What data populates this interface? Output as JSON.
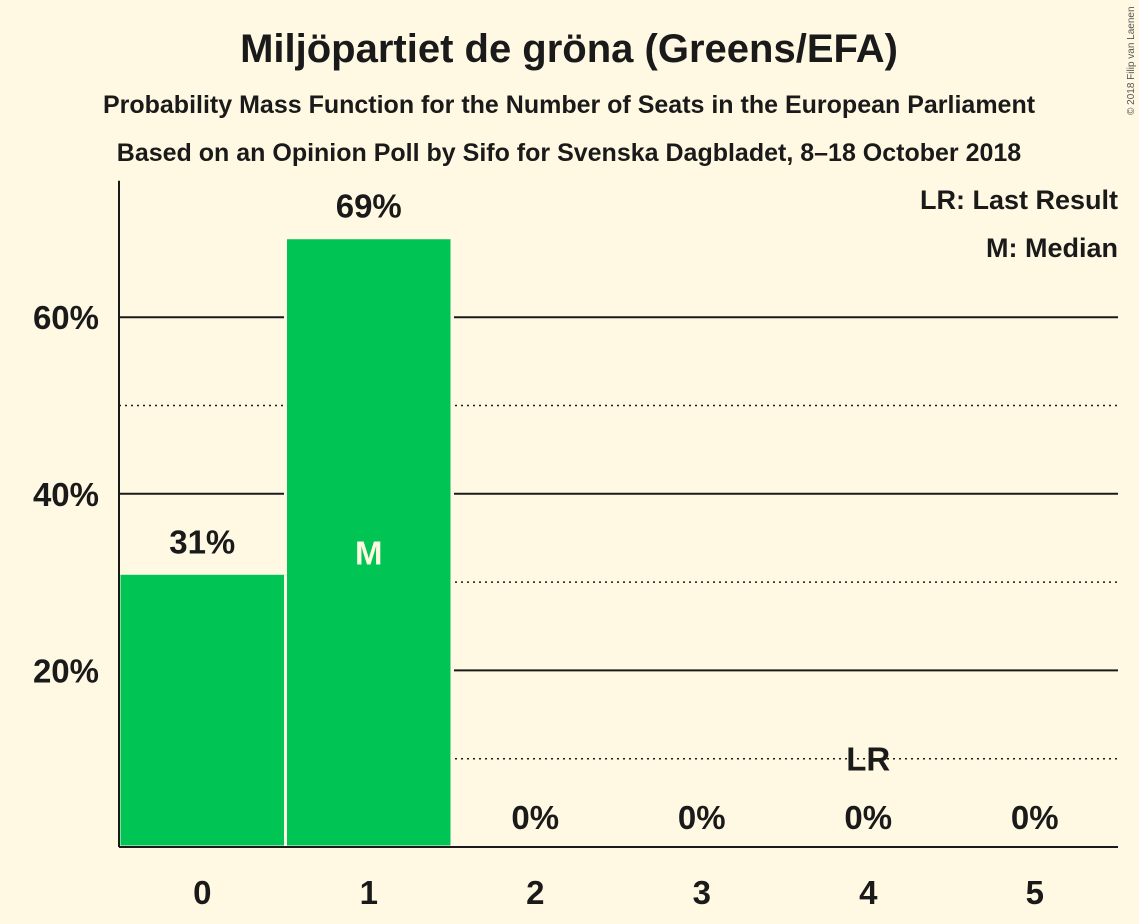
{
  "chart_data": {
    "type": "bar",
    "title": "Miljöpartiet de gröna (Greens/EFA)",
    "subtitles": [
      "Probability Mass Function for the Number of Seats in the European Parliament",
      "Based on an Opinion Poll by Sifo for Svenska Dagbladet, 8–18 October 2018"
    ],
    "categories": [
      "0",
      "1",
      "2",
      "3",
      "4",
      "5"
    ],
    "values": [
      31,
      69,
      0,
      0,
      0,
      0
    ],
    "value_labels": [
      "31%",
      "69%",
      "0%",
      "0%",
      "0%",
      "0%"
    ],
    "ylim": [
      0,
      75
    ],
    "yticks": [
      {
        "value": 20,
        "label": "20%"
      },
      {
        "value": 40,
        "label": "40%"
      },
      {
        "value": 60,
        "label": "60%"
      }
    ],
    "minor_gridlines": [
      10,
      30,
      50
    ],
    "median_index": 1,
    "median_marker": "M",
    "last_result_index": 4,
    "last_result_marker": "LR",
    "legend": [
      "LR: Last Result",
      "M: Median"
    ],
    "legend_position": "top-right",
    "bar_color": "#00C454",
    "copyright": "© 2018 Filip van Laenen"
  }
}
